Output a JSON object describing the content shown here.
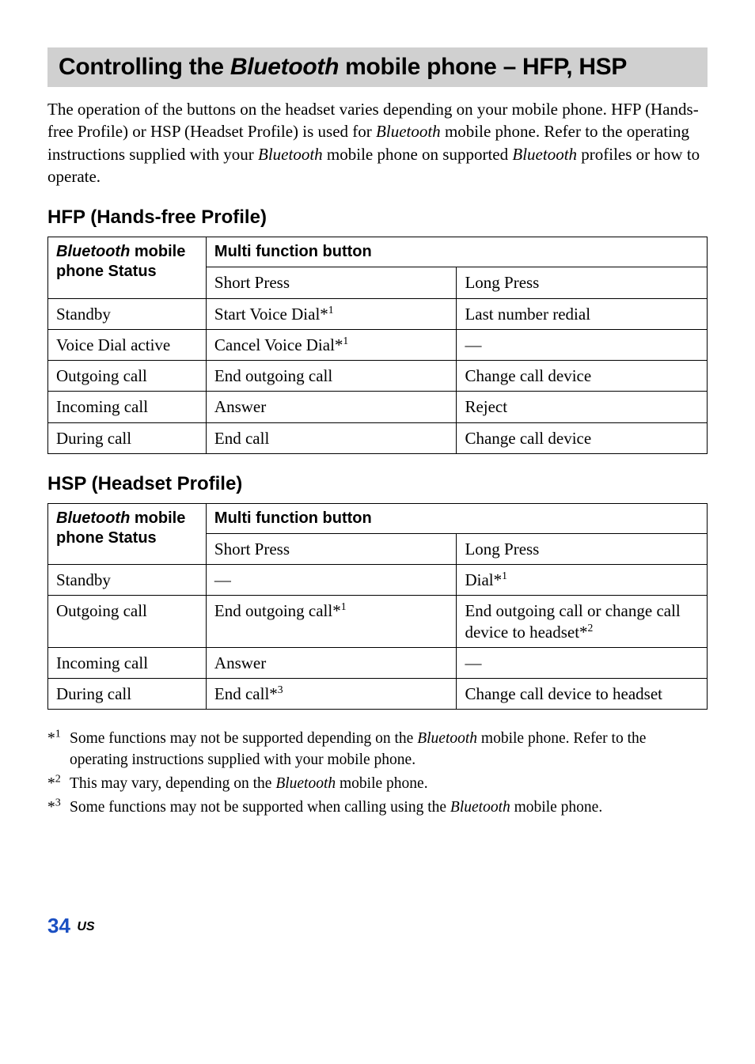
{
  "title_pre": "Controlling the ",
  "title_italic": "Bluetooth",
  "title_post": " mobile phone – HFP, HSP",
  "intro_parts": [
    {
      "t": "The operation of the buttons on the headset varies depending on your mobile phone.\nHFP (Hands-free Profile) or HSP (Headset Profile) is used for "
    },
    {
      "t": "Bluetooth",
      "i": true
    },
    {
      "t": " mobile phone. Refer to the operating instructions supplied with your "
    },
    {
      "t": "Bluetooth",
      "i": true
    },
    {
      "t": " mobile phone on supported "
    },
    {
      "t": "Bluetooth",
      "i": true
    },
    {
      "t": " profiles or how to operate."
    }
  ],
  "hfp_heading": "HFP (Hands-free Profile)",
  "hsp_heading": "HSP (Headset Profile)",
  "hdr_col1_italic": "Bluetooth",
  "hdr_col1_rest": " mobile phone Status",
  "hdr_multi": "Multi function button",
  "hdr_short": "Short Press",
  "hdr_long": "Long Press",
  "hfp_rows": [
    {
      "status": "Standby",
      "short": "Start Voice Dial*",
      "short_sup": "1",
      "long": "Last number redial"
    },
    {
      "status": "Voice Dial active",
      "short": "Cancel Voice Dial*",
      "short_sup": "1",
      "long": "—"
    },
    {
      "status": "Outgoing call",
      "short": "End outgoing call",
      "long": "Change call device"
    },
    {
      "status": "Incoming call",
      "short": "Answer",
      "long": "Reject"
    },
    {
      "status": "During call",
      "short": "End call",
      "long": "Change call device"
    }
  ],
  "hsp_rows": [
    {
      "status": "Standby",
      "short": "—",
      "long": "Dial*",
      "long_sup": "1"
    },
    {
      "status": "Outgoing call",
      "short": "End outgoing call*",
      "short_sup": "1",
      "long": "End outgoing call or change call device to headset*",
      "long_sup": "2"
    },
    {
      "status": "Incoming call",
      "short": "Answer",
      "long": "—"
    },
    {
      "status": "During call",
      "short": "End call*",
      "short_sup": "3",
      "long": "Change call device to headset"
    }
  ],
  "footnotes": [
    {
      "mark": "1",
      "parts": [
        {
          "t": "Some functions may not be supported depending on the "
        },
        {
          "t": "Bluetooth",
          "i": true
        },
        {
          "t": " mobile phone. Refer to the operating instructions supplied with your mobile phone."
        }
      ]
    },
    {
      "mark": "2",
      "parts": [
        {
          "t": "This may vary, depending on the "
        },
        {
          "t": "Bluetooth",
          "i": true
        },
        {
          "t": " mobile phone."
        }
      ]
    },
    {
      "mark": "3",
      "parts": [
        {
          "t": "Some functions may not be supported when calling using the "
        },
        {
          "t": "Bluetooth",
          "i": true
        },
        {
          "t": " mobile phone."
        }
      ]
    }
  ],
  "page_number": "34",
  "page_region": "US",
  "colors": {
    "title_bg": "#d0d0d0",
    "page_num": "#1a4fc2",
    "text": "#000000",
    "border": "#000000",
    "bg": "#ffffff"
  }
}
